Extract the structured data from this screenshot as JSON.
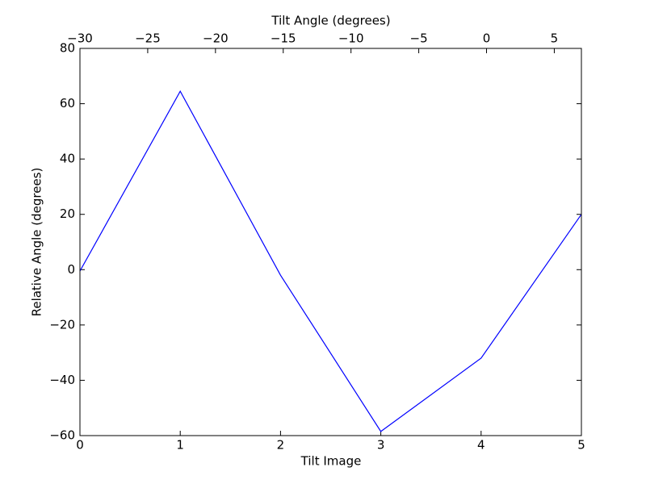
{
  "chart_data": {
    "type": "line",
    "xlabel": "Tilt Image",
    "ylabel": "Relative Angle (degrees)",
    "x2label": "Tilt Angle (degrees)",
    "x": [
      0,
      1,
      2,
      3,
      4,
      5
    ],
    "series": [
      {
        "color": "#0000ff",
        "values": [
          -0.5,
          64.5,
          -2,
          -58.5,
          -32,
          20
        ]
      }
    ],
    "xlim": [
      0,
      5
    ],
    "xticks": [
      0,
      1,
      2,
      3,
      4,
      5
    ],
    "ylim": [
      -60,
      80
    ],
    "yticks": [
      {
        "value": -60,
        "label": "−60"
      },
      {
        "value": -40,
        "label": "−40"
      },
      {
        "value": -20,
        "label": "−20"
      },
      0,
      20,
      40,
      60,
      80
    ],
    "x2lim": [
      -30,
      7
    ],
    "x2ticks": [
      {
        "value": -30,
        "label": "−30"
      },
      {
        "value": -25,
        "label": "−25"
      },
      {
        "value": -20,
        "label": "−20"
      },
      {
        "value": -15,
        "label": "−15"
      },
      {
        "value": -10,
        "label": "−10"
      },
      {
        "value": -5,
        "label": "−5"
      },
      0,
      5
    ]
  }
}
